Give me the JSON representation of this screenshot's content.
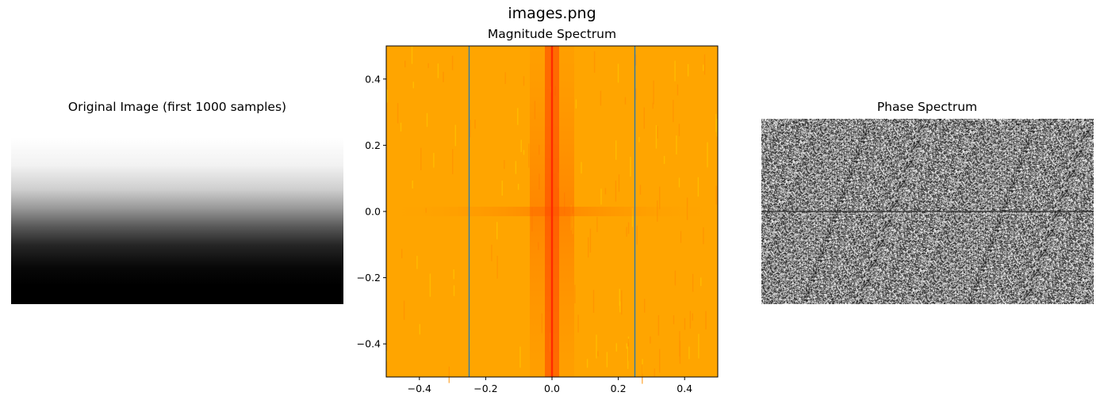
{
  "figure": {
    "suptitle": "images.png"
  },
  "panels": {
    "original": {
      "title": "Original Image (first 1000 samples)"
    },
    "magnitude": {
      "title": "Magnitude Spectrum"
    },
    "phase": {
      "title": "Phase Spectrum"
    }
  },
  "chart_data": [
    {
      "type": "heatmap",
      "title": "Original Image (first 1000 samples)",
      "description_colormap": "gray",
      "gradient": "white at top fading to black at bottom",
      "axes_visible": false
    },
    {
      "type": "heatmap",
      "title": "Magnitude Spectrum",
      "colormap": "autumn",
      "xlim": [
        -0.5,
        0.5
      ],
      "ylim": [
        -0.5,
        0.5
      ],
      "xticks": [
        -0.4,
        -0.2,
        0.0,
        0.2,
        0.4
      ],
      "xtick_labels": [
        "−0.4",
        "−0.2",
        "0.0",
        "0.2",
        "0.4"
      ],
      "yticks": [
        0.4,
        0.2,
        0.0,
        -0.2,
        -0.4
      ],
      "ytick_labels": [
        "0.4",
        "0.2",
        "0.0",
        "−0.2",
        "−0.4"
      ],
      "peak_lines_x": [
        0.0
      ],
      "vertical_lines_x": [
        -0.25,
        0.25
      ],
      "vertical_line_color": "#1f77b4",
      "background_color": "#ffa500",
      "peak_color": "#ff2a00"
    },
    {
      "type": "heatmap",
      "title": "Phase Spectrum",
      "colormap": "gray",
      "pattern": "random noise",
      "axes_visible": false
    }
  ]
}
